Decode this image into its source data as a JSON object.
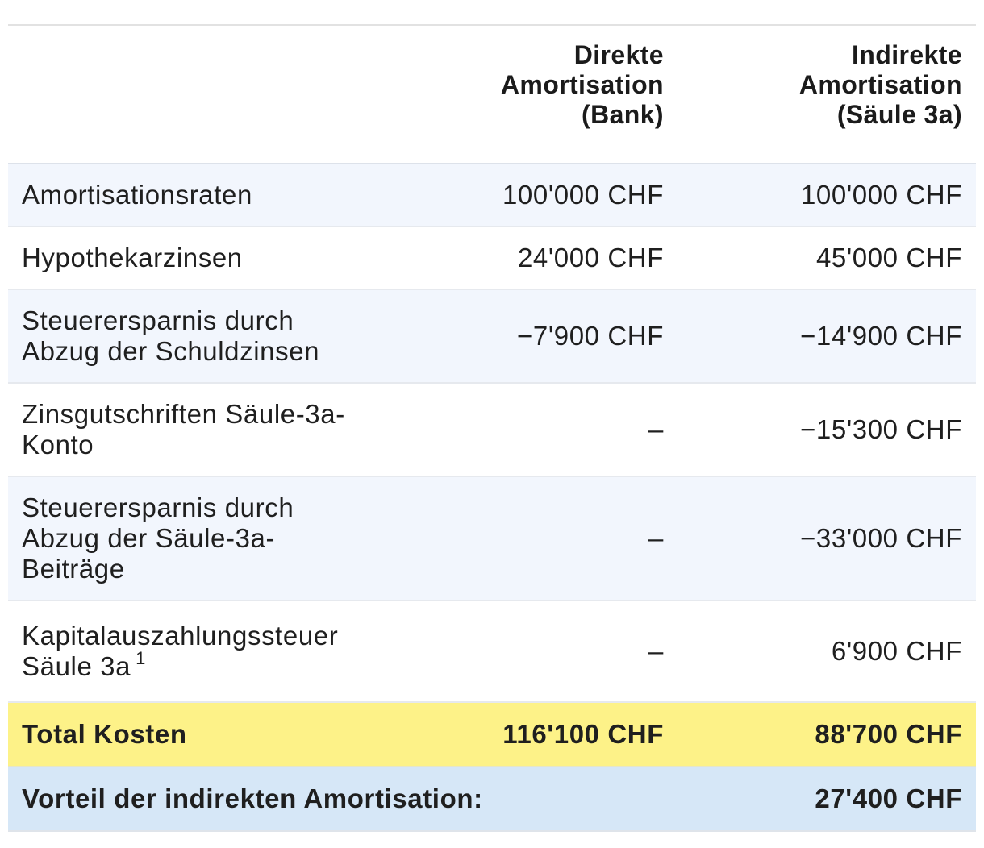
{
  "header": {
    "col_label": "",
    "col_direkt_l1": "Direkte",
    "col_direkt_l2": "Amortisation",
    "col_direkt_l3": "(Bank)",
    "col_indirekt_l1": "Indirekte",
    "col_indirekt_l2": "Amortisation",
    "col_indirekt_l3": "(Säule 3a)"
  },
  "rows": [
    {
      "label": "Amortisationsraten",
      "direkt": "100'000 CHF",
      "indirekt": "100'000 CHF"
    },
    {
      "label": "Hypothekarzinsen",
      "direkt": "24'000 CHF",
      "indirekt": "45'000 CHF"
    },
    {
      "label_l1": "Steuerersparnis durch",
      "label_l2": "Abzug der Schuldzinsen",
      "direkt": "−7'900 CHF",
      "indirekt": "−14'900 CHF"
    },
    {
      "label_l1": "Zinsgutschriften Säule-3a-",
      "label_l2": "Konto",
      "direkt": "–",
      "indirekt": "−15'300 CHF"
    },
    {
      "label_l1": "Steuerersparnis durch",
      "label_l2": "Abzug der Säule-3a-",
      "label_l3": "Beiträge",
      "direkt": "–",
      "indirekt": "−33'000 CHF"
    },
    {
      "label_l1": "Kapitalauszahlungssteuer",
      "label_l2": "Säule 3a",
      "footnote": "1",
      "direkt": "–",
      "indirekt": "6'900 CHF"
    }
  ],
  "total": {
    "label": "Total Kosten",
    "direkt": "116'100 CHF",
    "indirekt": "88'700 CHF"
  },
  "vorteil": {
    "label": "Vorteil der indirekten Amortisation:",
    "value": "27'400 CHF"
  },
  "colors": {
    "row_alt": "#f2f6fd",
    "total_bg": "#fdf288",
    "vorteil_bg": "#d6e7f7"
  }
}
